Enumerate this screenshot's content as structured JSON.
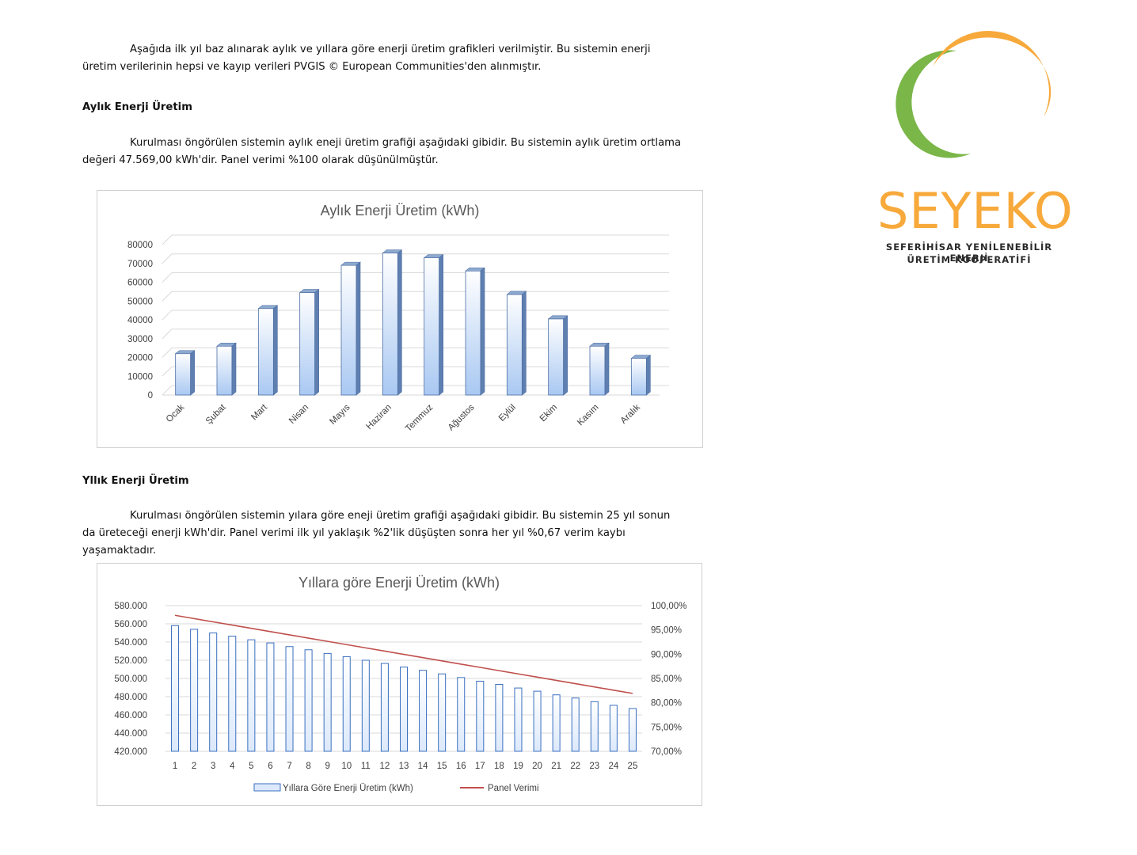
{
  "intro": {
    "text": "Aşağıda ilk yıl baz alınarak aylık ve yıllara göre enerji üretim grafikleri verilmiştir. Bu sistemin enerji üretim verilerinin hepsi ve kayıp verileri PVGIS © European Communities'den alınmıştır."
  },
  "monthly_section": {
    "heading": "Aylık Enerji Üretim",
    "text": "Kurulması öngörülen sistemin aylık eneji üretim grafiği aşağıdaki gibidir. Bu sistemin aylık üretim ortlama değeri 47.569,00 kWh'dir. Panel verimi %100 olarak düşünülmüştür."
  },
  "yearly_section": {
    "heading": "Yllık Enerji Üretim",
    "text": "Kurulması öngörülen sistemin yılara göre eneji üretim grafiği aşağıdaki gibidir. Bu sistemin 25 yıl sonun da üreteceği enerji kWh'dir. Panel verimi ilk yıl yaklaşık %2'lik düşüşten sonra her yıl %0,67 verim kaybı yaşamaktadır."
  },
  "logo": {
    "name": "SEYEKO",
    "subtitle_line1": "SEFERİHİSAR YENİLENEBİLİR ENERJİ",
    "subtitle_line2": "ÜRETİM KOOPERATİFİ",
    "colors": {
      "green": "#7ab648",
      "orange": "#f7a93b",
      "blue": "#1f78c1"
    }
  },
  "chart_data": [
    {
      "type": "bar",
      "title": "Aylık Enerji Üretim (kWh)",
      "categories": [
        "Ocak",
        "Şubat",
        "Mart",
        "Nisan",
        "Mayıs",
        "Haziran",
        "Temmuz",
        "Ağustos",
        "Eylül",
        "Ekim",
        "Kasım",
        "Aralık"
      ],
      "values": [
        22000,
        26000,
        46000,
        54500,
        69000,
        75500,
        73000,
        66000,
        53500,
        40500,
        26000,
        19500
      ],
      "ylim": [
        0,
        80000
      ],
      "yticks": [
        "0",
        "10000",
        "20000",
        "30000",
        "40000",
        "50000",
        "60000",
        "70000",
        "80000"
      ],
      "xlabel": "",
      "ylabel": "",
      "grid": true,
      "bar_color": "#a9c8f2",
      "bar_edge": "#4a6da3"
    },
    {
      "type": "bar",
      "title": "Yıllara göre Enerji Üretim (kWh)",
      "categories": [
        "1",
        "2",
        "3",
        "4",
        "5",
        "6",
        "7",
        "8",
        "9",
        "10",
        "11",
        "12",
        "13",
        "14",
        "15",
        "16",
        "17",
        "18",
        "19",
        "20",
        "21",
        "22",
        "23",
        "24",
        "25"
      ],
      "series": [
        {
          "name": "Yıllara Göre Enerji Üretim (kWh)",
          "type": "bar",
          "axis": "left",
          "values": [
            558000,
            554000,
            550000,
            546500,
            542500,
            539000,
            535000,
            531500,
            527500,
            524000,
            520000,
            516500,
            512500,
            509000,
            505000,
            501000,
            497000,
            493500,
            489500,
            486000,
            482000,
            478500,
            474500,
            470500,
            467000
          ]
        },
        {
          "name": "Panel Verimi",
          "type": "line",
          "axis": "right",
          "values": [
            98.0,
            97.33,
            96.66,
            95.99,
            95.32,
            94.65,
            93.98,
            93.31,
            92.64,
            91.97,
            91.3,
            90.63,
            89.96,
            89.29,
            88.62,
            87.95,
            87.28,
            86.61,
            85.94,
            85.27,
            84.6,
            83.93,
            83.26,
            82.59,
            81.92
          ]
        }
      ],
      "ylim_left": [
        420000,
        580000
      ],
      "yticks_left": [
        "420.000",
        "440.000",
        "460.000",
        "480.000",
        "500.000",
        "520.000",
        "540.000",
        "560.000",
        "580.000"
      ],
      "ylim_right": [
        70,
        100
      ],
      "yticks_right": [
        "70,00%",
        "75,00%",
        "80,00%",
        "85,00%",
        "90,00%",
        "95,00%",
        "100,00%"
      ],
      "legend": "bottom",
      "grid": true,
      "bar_color": "#dce9fb",
      "bar_edge": "#3a6fc0",
      "line_color": "#c0504d"
    }
  ]
}
